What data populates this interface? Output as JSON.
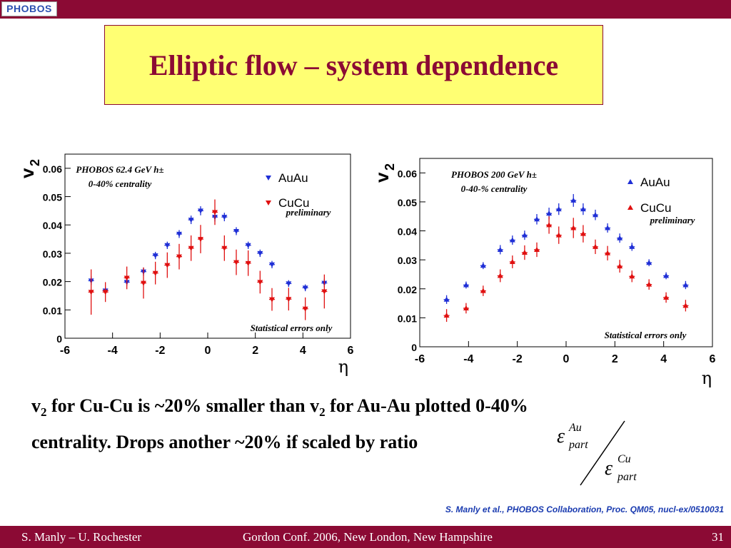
{
  "logo_text": "PHOBOS",
  "title": "Elliptic flow – system dependence",
  "body": {
    "line1_a": "v",
    "line1_sub1": "2",
    "line1_b": " for Cu-Cu is ~20% smaller than v",
    "line1_sub2": "2",
    "line1_c": " for Au-Au plotted 0-40%",
    "line2": "centrality.  Drops another ~20% if scaled by ratio"
  },
  "ratio": {
    "top_symbol": "ε",
    "top_sup": "Au",
    "top_sub": "part",
    "bottom_symbol": "ε",
    "bottom_sup": "Cu",
    "bottom_sub": "part"
  },
  "citation": "S. Manly et al., PHOBOS Collaboration, Proc. QM05, nucl-ex/0510031",
  "footer": {
    "left": "S. Manly – U. Rochester",
    "center": "Gordon Conf. 2006, New London, New Hampshire",
    "right": "31"
  },
  "colors": {
    "accent": "#8b0a34",
    "title_bg": "#ffff73",
    "auau": "#1f2fd6",
    "cucu": "#e01010",
    "citation": "#1a3bb0"
  },
  "chart_data": [
    {
      "type": "scatter",
      "ylabel": "v",
      "ylabel_sub": "2",
      "xlabel": "η",
      "xlim": [
        -6,
        6
      ],
      "ylim": [
        0,
        0.065
      ],
      "xticks": [
        -6,
        -4,
        -2,
        0,
        2,
        4,
        6
      ],
      "xtick_labels": [
        "-6",
        "-4",
        "-2",
        "0",
        "2",
        "4",
        "6"
      ],
      "yticks": [
        0,
        0.01,
        0.02,
        0.03,
        0.04,
        0.05,
        0.06
      ],
      "ytick_labels": [
        "0",
        "0.01",
        "0.02",
        "0.03",
        "0.04",
        "0.05",
        "0.06"
      ],
      "annotations": [
        "PHOBOS 62.4 GeV  h±",
        "0-40% centrality",
        "Statistical errors only",
        "preliminary"
      ],
      "marker": "down",
      "series": [
        {
          "name": "AuAu",
          "x": [
            -4.9,
            -4.3,
            -3.4,
            -2.7,
            -2.2,
            -1.7,
            -1.2,
            -0.7,
            -0.3,
            0.3,
            0.7,
            1.2,
            1.7,
            2.2,
            2.7,
            3.4,
            4.1,
            4.9
          ],
          "y": [
            0.0203,
            0.0168,
            0.0198,
            0.0235,
            0.0292,
            0.0328,
            0.0368,
            0.0418,
            0.045,
            0.0428,
            0.0428,
            0.0378,
            0.0328,
            0.03,
            0.026,
            0.0193,
            0.0178,
            0.0195
          ],
          "err": [
            0.0015,
            0.0012,
            0.0012,
            0.0014,
            0.0013,
            0.0013,
            0.0014,
            0.0015,
            0.0016,
            0.0016,
            0.0015,
            0.0014,
            0.0013,
            0.0013,
            0.0013,
            0.0012,
            0.0012,
            0.0015
          ]
        },
        {
          "name": "CuCu",
          "x": [
            -4.9,
            -4.3,
            -3.4,
            -2.7,
            -2.2,
            -1.7,
            -1.2,
            -0.7,
            -0.3,
            0.3,
            0.7,
            1.2,
            1.7,
            2.2,
            2.7,
            3.4,
            4.1,
            4.9
          ],
          "y": [
            0.0163,
            0.0163,
            0.0213,
            0.0195,
            0.023,
            0.0258,
            0.0288,
            0.0318,
            0.035,
            0.0445,
            0.0318,
            0.0268,
            0.0265,
            0.0198,
            0.0137,
            0.0138,
            0.0104,
            0.0165
          ],
          "err": [
            0.008,
            0.0035,
            0.004,
            0.0055,
            0.004,
            0.0045,
            0.0045,
            0.0045,
            0.005,
            0.0045,
            0.0045,
            0.0045,
            0.0045,
            0.004,
            0.004,
            0.004,
            0.004,
            0.006
          ]
        }
      ]
    },
    {
      "type": "scatter",
      "ylabel": "v",
      "ylabel_sub": "2",
      "xlabel": "η",
      "xlim": [
        -6,
        6
      ],
      "ylim": [
        0,
        0.065
      ],
      "xticks": [
        -6,
        -4,
        -2,
        0,
        2,
        4,
        6
      ],
      "xtick_labels": [
        "-6",
        "-4",
        "-2",
        "0",
        "2",
        "4",
        "6"
      ],
      "yticks": [
        0,
        0.01,
        0.02,
        0.03,
        0.04,
        0.05,
        0.06
      ],
      "ytick_labels": [
        "0",
        "0.01",
        "0.02",
        "0.03",
        "0.04",
        "0.05",
        "0.06"
      ],
      "annotations": [
        "PHOBOS 200 GeV  h±",
        "0-40-% centrality",
        "Statistical errors only",
        "preliminary"
      ],
      "marker": "up",
      "series": [
        {
          "name": "AuAu",
          "x": [
            -4.9,
            -4.1,
            -3.4,
            -2.7,
            -2.2,
            -1.7,
            -1.2,
            -0.7,
            -0.3,
            0.3,
            0.7,
            1.2,
            1.7,
            2.2,
            2.7,
            3.4,
            4.1,
            4.9
          ],
          "y": [
            0.0163,
            0.0213,
            0.028,
            0.0335,
            0.0368,
            0.0385,
            0.044,
            0.046,
            0.0475,
            0.0505,
            0.0475,
            0.0455,
            0.041,
            0.0375,
            0.0345,
            0.029,
            0.0245,
            0.0213
          ],
          "err": [
            0.0015,
            0.0012,
            0.0012,
            0.0016,
            0.0016,
            0.0016,
            0.0018,
            0.002,
            0.002,
            0.0022,
            0.002,
            0.0018,
            0.0016,
            0.0016,
            0.0014,
            0.0012,
            0.0012,
            0.0014
          ]
        },
        {
          "name": "CuCu",
          "x": [
            -4.9,
            -4.1,
            -3.4,
            -2.7,
            -2.2,
            -1.7,
            -1.2,
            -0.7,
            -0.3,
            0.3,
            0.7,
            1.2,
            1.7,
            2.2,
            2.7,
            3.4,
            4.1,
            4.9
          ],
          "y": [
            0.0108,
            0.0133,
            0.0193,
            0.0245,
            0.0293,
            0.0325,
            0.0335,
            0.042,
            0.0385,
            0.041,
            0.039,
            0.0345,
            0.0323,
            0.0278,
            0.0243,
            0.0215,
            0.017,
            0.0142
          ],
          "err": [
            0.0022,
            0.0018,
            0.0018,
            0.0022,
            0.0022,
            0.0025,
            0.0025,
            0.003,
            0.003,
            0.0035,
            0.003,
            0.0025,
            0.0025,
            0.0022,
            0.002,
            0.0018,
            0.0018,
            0.002
          ]
        }
      ]
    }
  ]
}
